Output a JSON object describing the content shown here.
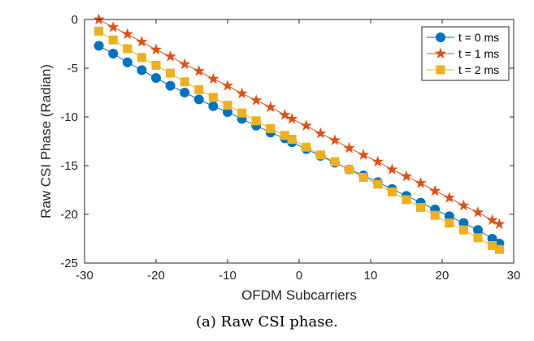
{
  "chart_data": {
    "type": "line",
    "xlabel": "OFDM Subcarriers",
    "ylabel": "Raw CSI Phase (Radian)",
    "xlim": [
      -30,
      30
    ],
    "ylim": [
      -25,
      0
    ],
    "xticks": [
      -30,
      -20,
      -10,
      0,
      10,
      20,
      30
    ],
    "yticks": [
      0,
      -5,
      -10,
      -15,
      -20,
      -25
    ],
    "grid": false,
    "legend_position": "top-right",
    "x": [
      -28,
      -26,
      -24,
      -22,
      -20,
      -18,
      -16,
      -14,
      -12,
      -10,
      -8,
      -6,
      -4,
      -2,
      -1,
      1,
      3,
      5,
      7,
      9,
      11,
      13,
      15,
      17,
      19,
      21,
      23,
      25,
      27,
      28
    ],
    "series": [
      {
        "name": "t = 0 ms",
        "color": "#0072BD",
        "marker": "circle",
        "values": [
          -2.7,
          -3.5,
          -4.4,
          -5.2,
          -6.0,
          -6.8,
          -7.5,
          -8.2,
          -8.9,
          -9.5,
          -10.2,
          -10.9,
          -11.6,
          -12.2,
          -12.6,
          -13.3,
          -14.0,
          -14.7,
          -15.4,
          -16.0,
          -16.7,
          -17.4,
          -18.1,
          -18.8,
          -19.5,
          -20.2,
          -20.9,
          -21.6,
          -22.5,
          -23.0
        ]
      },
      {
        "name": "t = 1 ms",
        "color": "#D95319",
        "marker": "star",
        "values": [
          0.0,
          -0.8,
          -1.5,
          -2.3,
          -3.1,
          -3.8,
          -4.6,
          -5.3,
          -6.1,
          -6.8,
          -7.6,
          -8.3,
          -9.0,
          -9.8,
          -10.2,
          -10.9,
          -11.7,
          -12.4,
          -13.2,
          -13.9,
          -14.6,
          -15.4,
          -16.1,
          -16.8,
          -17.6,
          -18.3,
          -19.1,
          -19.8,
          -20.6,
          -21.0
        ]
      },
      {
        "name": "t = 2 ms",
        "color": "#EDB120",
        "marker": "square",
        "values": [
          -1.2,
          -2.1,
          -3.0,
          -3.9,
          -4.7,
          -5.5,
          -6.4,
          -7.2,
          -8.0,
          -8.8,
          -9.6,
          -10.4,
          -11.2,
          -11.9,
          -12.3,
          -13.1,
          -13.9,
          -14.6,
          -15.4,
          -16.2,
          -16.9,
          -17.7,
          -18.5,
          -19.3,
          -20.1,
          -20.9,
          -21.6,
          -22.4,
          -23.2,
          -23.6
        ]
      }
    ]
  },
  "caption": "(a) Raw CSI phase."
}
